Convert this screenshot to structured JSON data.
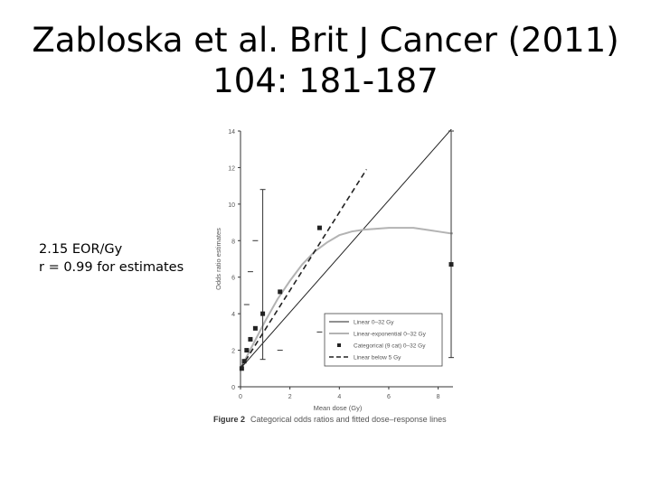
{
  "slide": {
    "title_line1": "Zabloska et al. Brit J Cancer (2011)",
    "title_line2": "104: 181-187",
    "annotation_line1": "2.15 EOR/Gy",
    "annotation_line2": "r = 0.99 for estimates"
  },
  "figure": {
    "label": "Figure 2",
    "caption": "Categorical odds ratios and fitted dose–response lines"
  },
  "chart_data": {
    "type": "scatter",
    "xlabel": "Mean dose (Gy)",
    "ylabel": "Odds ratio estimates",
    "xlim": [
      0,
      8.6
    ],
    "ylim": [
      0,
      14
    ],
    "xticks": [
      0,
      2,
      4,
      6,
      8
    ],
    "yticks": [
      0,
      2,
      4,
      6,
      8,
      10,
      12,
      14
    ],
    "grid": false,
    "legend_position": "bottom-right",
    "categorical": {
      "name": "Categorical (9 cat) 0–32 Gy",
      "color": "#222222",
      "points": [
        {
          "x": 0.05,
          "y": 1.0,
          "lo": null,
          "hi": null
        },
        {
          "x": 0.15,
          "y": 1.4,
          "lo": null,
          "hi": null
        },
        {
          "x": 0.25,
          "y": 2.0,
          "lo": null,
          "hi": 4.5
        },
        {
          "x": 0.4,
          "y": 2.6,
          "lo": null,
          "hi": 6.3
        },
        {
          "x": 0.6,
          "y": 3.2,
          "lo": null,
          "hi": 8.0
        },
        {
          "x": 0.9,
          "y": 4.0,
          "lo": 1.5,
          "hi": 10.8
        },
        {
          "x": 1.6,
          "y": 5.2,
          "lo": 2.0,
          "hi": null
        },
        {
          "x": 3.2,
          "y": 8.7,
          "lo": 3.0,
          "hi": null
        },
        {
          "x": 8.8,
          "y": 6.7,
          "lo": 1.6,
          "hi": 14.0
        }
      ]
    },
    "series": [
      {
        "name": "Linear 0–32 Gy",
        "style": "solid",
        "color": "#222222",
        "x": [
          0,
          8.6
        ],
        "y": [
          1.0,
          14.2
        ]
      },
      {
        "name": "Linear-exponential 0–32 Gy",
        "style": "solid",
        "color": "#b3b3b3",
        "x": [
          0,
          0.5,
          1,
          1.5,
          2,
          2.5,
          3,
          3.5,
          4,
          4.5,
          5,
          5.5,
          6,
          6.5,
          7,
          7.5,
          8,
          8.5,
          8.8
        ],
        "y": [
          1.0,
          2.3,
          3.6,
          4.8,
          5.8,
          6.7,
          7.4,
          7.9,
          8.3,
          8.5,
          8.6,
          8.65,
          8.7,
          8.7,
          8.7,
          8.6,
          8.5,
          8.4,
          8.4
        ]
      },
      {
        "name": "Linear below 5 Gy",
        "style": "dashed",
        "color": "#222222",
        "x": [
          0,
          5.1
        ],
        "y": [
          1.0,
          11.9
        ]
      }
    ]
  }
}
